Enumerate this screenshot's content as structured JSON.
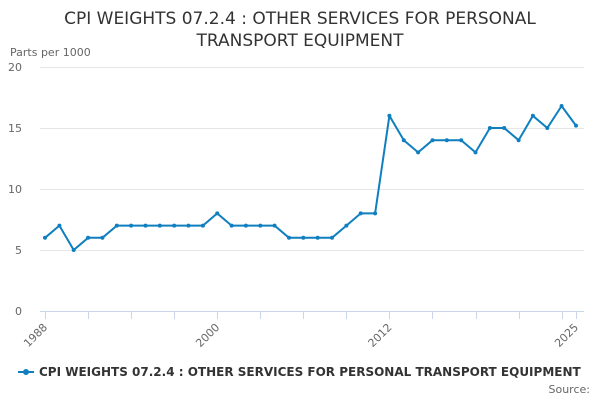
{
  "chart_data": {
    "type": "line",
    "title_line1": "CPI WEIGHTS 07.2.4 : OTHER SERVICES FOR PERSONAL",
    "title_line2": "TRANSPORT EQUIPMENT",
    "ylabel": "Parts per 1000",
    "ylim": [
      0,
      20
    ],
    "yticks": [
      0,
      5,
      10,
      15,
      20
    ],
    "xlim": [
      1988,
      2025
    ],
    "xticks": [
      1988,
      2000,
      2012,
      2025
    ],
    "grid": true,
    "legend_position": "bottom-left",
    "series": [
      {
        "name": "CPI WEIGHTS 07.2.4 : OTHER SERVICES FOR PERSONAL TRANSPORT EQUIPMENT",
        "color": "#0f7fbf",
        "x": [
          1988,
          1989,
          1990,
          1991,
          1992,
          1993,
          1994,
          1995,
          1996,
          1997,
          1998,
          1999,
          2000,
          2001,
          2002,
          2003,
          2004,
          2005,
          2006,
          2007,
          2008,
          2009,
          2010,
          2011,
          2012,
          2013,
          2014,
          2015,
          2016,
          2017,
          2018,
          2019,
          2020,
          2021,
          2022,
          2023,
          2024,
          2025
        ],
        "values": [
          6,
          7,
          5,
          6,
          6,
          7,
          7,
          7,
          7,
          7,
          7,
          7,
          8,
          7,
          7,
          7,
          7,
          6,
          6,
          6,
          6,
          7,
          8,
          8,
          16,
          14,
          13,
          14,
          14,
          14,
          13,
          15,
          15,
          14,
          16,
          15,
          16.8,
          15.2
        ]
      }
    ]
  },
  "credits": "Source:"
}
